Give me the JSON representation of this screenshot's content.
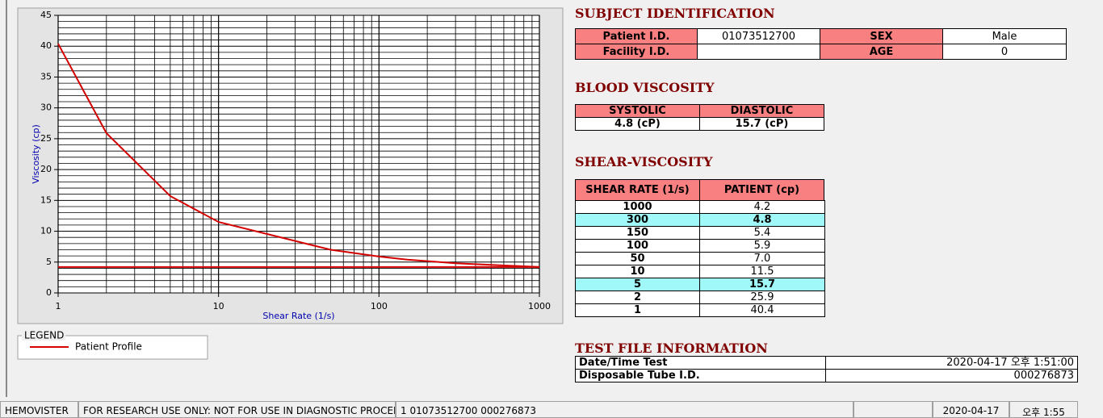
{
  "chart_data": {
    "type": "line",
    "xlabel": "Shear Rate (1/s)",
    "ylabel": "Viscosity (cp)",
    "xscale": "log",
    "xlim": [
      1,
      1000
    ],
    "xticks": [
      1,
      10,
      100,
      1000
    ],
    "ylim": [
      0,
      45
    ],
    "yticks": [
      0,
      5,
      10,
      15,
      20,
      25,
      30,
      35,
      40,
      45
    ],
    "grid": true,
    "legend_title": "LEGEND",
    "series": [
      {
        "name": "Patient Profile",
        "color": "#d40000",
        "x": [
          1,
          2,
          5,
          10,
          50,
          100,
          150,
          300,
          1000
        ],
        "values": [
          40.4,
          25.9,
          15.7,
          11.5,
          7.0,
          5.9,
          5.4,
          4.8,
          4.2
        ]
      },
      {
        "color": "#d40000",
        "x": [
          1,
          1000
        ],
        "values": [
          4.2,
          4.2
        ]
      }
    ]
  },
  "subject_identification": {
    "title": "SUBJECT IDENTIFICATION",
    "rows": [
      [
        "Patient I.D.",
        "01073512700",
        "SEX",
        "Male"
      ],
      [
        "Facility I.D.",
        null,
        "AGE",
        "0"
      ]
    ]
  },
  "blood_viscosity": {
    "title": "BLOOD VISCOSITY",
    "headers": [
      "SYSTOLIC",
      "DIASTOLIC"
    ],
    "values": [
      "4.8 (cP)",
      "15.7 (cP)"
    ]
  },
  "shear_viscosity": {
    "title": "SHEAR-VISCOSITY",
    "headers": [
      "SHEAR RATE (1/s)",
      "PATIENT (cp)"
    ],
    "rows": [
      {
        "rate": "1000",
        "patient": "4.2"
      },
      {
        "rate": "300",
        "patient": "4.8",
        "highlight": true
      },
      {
        "rate": "150",
        "patient": "5.4"
      },
      {
        "rate": "100",
        "patient": "5.9"
      },
      {
        "rate": "50",
        "patient": "7.0"
      },
      {
        "rate": "10",
        "patient": "11.5"
      },
      {
        "rate": "5",
        "patient": "15.7",
        "highlight": true
      },
      {
        "rate": "2",
        "patient": "25.9"
      },
      {
        "rate": "1",
        "patient": "40.4"
      }
    ]
  },
  "test_file": {
    "title": "TEST FILE INFORMATION",
    "rows": [
      [
        "Date/Time Test",
        "2020-04-17   오후 1:51:00"
      ],
      [
        "Disposable Tube I.D.",
        "000276873"
      ]
    ]
  },
  "status_bar": [
    "HEMOVISTER",
    "FOR RESEARCH USE ONLY: NOT FOR USE IN DIAGNOSTIC PROCEDURES",
    "1  01073512700  000276873",
    null,
    "2020-04-17",
    "오후 1:55"
  ]
}
